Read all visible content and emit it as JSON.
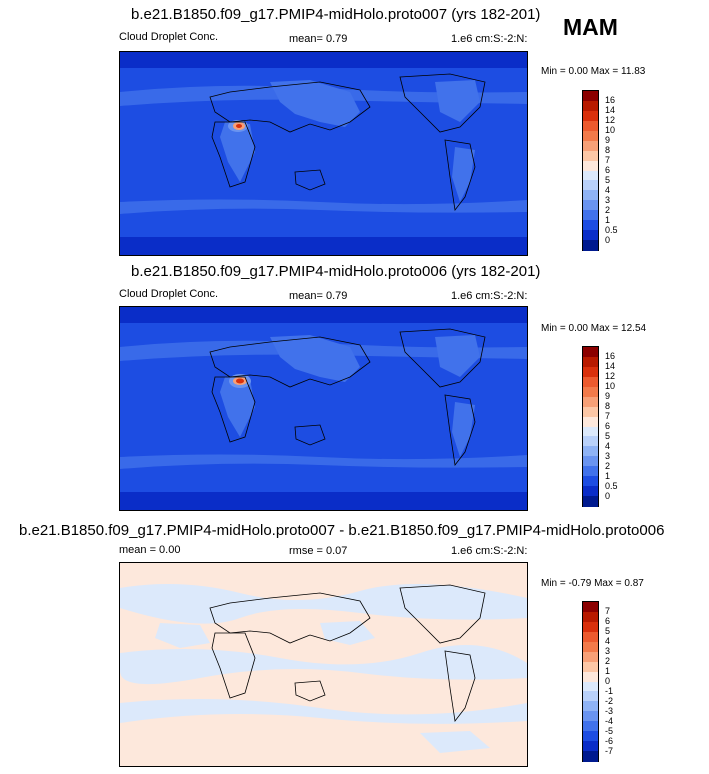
{
  "season": "MAM",
  "panels": [
    {
      "title": "b.e21.B1850.f09_g17.PMIP4-midHolo.proto007 (yrs 182-201)",
      "left_label": "Cloud Droplet Conc.",
      "mid_label": "mean=   0.79",
      "units": "1.e6 cm:S:-2:N:",
      "minmax": "Min =   0.00 Max =  11.83",
      "colorbar": {
        "labels": [
          "16",
          "14",
          "12",
          "10",
          "9",
          "8",
          "7",
          "6",
          "5",
          "4",
          "3",
          "2",
          "1",
          "0.5",
          "0"
        ],
        "colors": [
          "#8b0000",
          "#b81a00",
          "#d9300c",
          "#ec5a2e",
          "#f27a4a",
          "#f7a077",
          "#fcc7a6",
          "#fde8dc",
          "#dce9fb",
          "#b9d1fa",
          "#8fb3f5",
          "#6a94f0",
          "#4172eb",
          "#1d4de2",
          "#0a2dc8",
          "#001a8f"
        ]
      }
    },
    {
      "title": "b.e21.B1850.f09_g17.PMIP4-midHolo.proto006 (yrs 182-201)",
      "left_label": "Cloud Droplet Conc.",
      "mid_label": "mean=   0.79",
      "units": "1.e6 cm:S:-2:N:",
      "minmax": "Min =   0.00 Max =  12.54",
      "colorbar": {
        "labels": [
          "16",
          "14",
          "12",
          "10",
          "9",
          "8",
          "7",
          "6",
          "5",
          "4",
          "3",
          "2",
          "1",
          "0.5",
          "0"
        ],
        "colors": [
          "#8b0000",
          "#b81a00",
          "#d9300c",
          "#ec5a2e",
          "#f27a4a",
          "#f7a077",
          "#fcc7a6",
          "#fde8dc",
          "#dce9fb",
          "#b9d1fa",
          "#8fb3f5",
          "#6a94f0",
          "#4172eb",
          "#1d4de2",
          "#0a2dc8",
          "#001a8f"
        ]
      }
    },
    {
      "title": "b.e21.B1850.f09_g17.PMIP4-midHolo.proto007 - b.e21.B1850.f09_g17.PMIP4-midHolo.proto006",
      "left_label": "mean =   0.00",
      "mid_label": "rmse =   0.07",
      "units": "1.e6 cm:S:-2:N:",
      "minmax": "Min =  -0.79 Max =   0.87",
      "colorbar": {
        "labels": [
          "7",
          "6",
          "5",
          "4",
          "3",
          "2",
          "1",
          "0",
          "-1",
          "-2",
          "-3",
          "-4",
          "-5",
          "-6",
          "-7"
        ],
        "colors": [
          "#8b0000",
          "#b81a00",
          "#d9300c",
          "#ec5a2e",
          "#f27a4a",
          "#f7a077",
          "#fcc7a6",
          "#fde8dc",
          "#dce9fb",
          "#b9d1fa",
          "#8fb3f5",
          "#6a94f0",
          "#4172eb",
          "#1d4de2",
          "#0a2dc8",
          "#001a8f"
        ]
      }
    }
  ],
  "colors": {
    "ocean_deep": "#1d4de2",
    "ocean_mid": "#4172eb",
    "land_low": "#6a94f0",
    "hotspot": "#d9300c",
    "diff_pos": "#fde8dc",
    "diff_neg": "#dce9fb"
  }
}
